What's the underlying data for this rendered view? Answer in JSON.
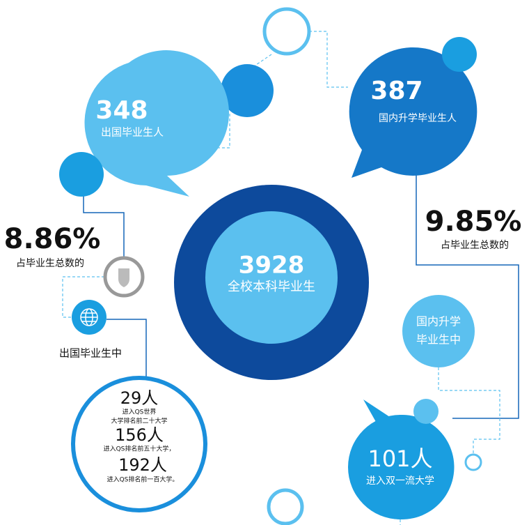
{
  "center": {
    "value": "3928",
    "label": "全校本科毕业生"
  },
  "abroad": {
    "value": "348",
    "label": "出国毕业生人",
    "percent": "8.86%",
    "percent_label": "占毕业生总数的",
    "intro": "出国毕业生中",
    "details": [
      {
        "value": "29人",
        "lines": [
          "进入QS世界",
          "大学排名前二十大学"
        ]
      },
      {
        "value": "156人",
        "lines": [
          "进入QS排名前五十大学，"
        ]
      },
      {
        "value": "192人",
        "lines": [
          "进入QS排名前一百大学。"
        ]
      }
    ]
  },
  "domestic": {
    "value": "387",
    "label": "国内升学毕业生人",
    "percent": "9.85%",
    "percent_label": "占毕业生总数的",
    "intro": [
      "国内升学",
      "毕业生中"
    ],
    "result": {
      "value": "101人",
      "label": "进入双一流大学"
    }
  }
}
